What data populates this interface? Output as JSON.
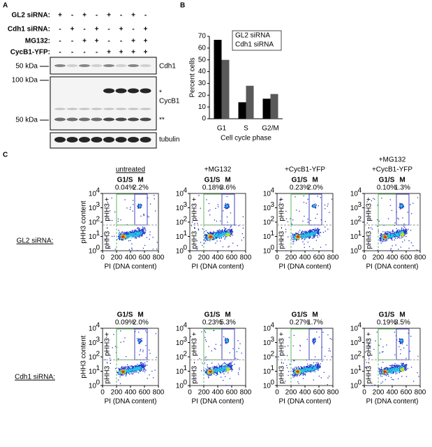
{
  "panel_a": {
    "label": "A",
    "treatments": [
      {
        "name": "GL2 siRNA:",
        "lanes": [
          "+",
          "-",
          "+",
          "-",
          "+",
          "-",
          "+",
          "-"
        ]
      },
      {
        "name": "Cdh1 siRNA:",
        "lanes": [
          "-",
          "+",
          "-",
          "+",
          "-",
          "+",
          "-",
          "+"
        ]
      },
      {
        "name": "MG132:",
        "lanes": [
          "-",
          "-",
          "+",
          "+",
          "-",
          "-",
          "+",
          "+"
        ]
      },
      {
        "name": "CycB1-YFP:",
        "lanes": [
          "-",
          "-",
          "-",
          "-",
          "+",
          "+",
          "+",
          "+"
        ]
      }
    ],
    "markers": [
      "50 kDa",
      "100 kDa",
      "50 kDa"
    ],
    "bands": [
      "Cdh1",
      "*",
      "CycB1",
      "**",
      "tubulin"
    ]
  },
  "chart_data": {
    "label": "B",
    "type": "bar",
    "categories": [
      "G1",
      "S",
      "G2/M"
    ],
    "series": [
      {
        "name": "GL2 siRNA",
        "color": "#000000",
        "values": [
          67,
          14,
          17
        ]
      },
      {
        "name": "Cdh1 siRNA",
        "color": "#595959",
        "values": [
          50,
          28,
          21
        ]
      }
    ],
    "ylabel": "Percent cells",
    "xlabel": "Cell cycle phase",
    "ylim": [
      0,
      70
    ],
    "yticks": [
      0,
      10,
      20,
      30,
      40,
      50,
      60,
      70
    ],
    "legend": "upper right"
  },
  "panel_c": {
    "label": "C",
    "columns": [
      {
        "lines": [
          "untreated"
        ]
      },
      {
        "lines": [
          "+MG132"
        ]
      },
      {
        "lines": [
          "+CycB1-YFP"
        ]
      },
      {
        "lines": [
          "+MG132",
          "+CycB1-YFP"
        ]
      }
    ],
    "rows": [
      {
        "name": "GL2 siRNA:",
        "plots": [
          {
            "g1s": "0.04%",
            "m": "2.2%"
          },
          {
            "g1s": "0.18%",
            "m": "3.6%"
          },
          {
            "g1s": "0.23%",
            "m": "2.0%"
          },
          {
            "g1s": "0.10%",
            "m": "1.3%"
          }
        ]
      },
      {
        "name": "Cdh1 siRNA:",
        "plots": [
          {
            "g1s": "0.09%",
            "m": "2.0%"
          },
          {
            "g1s": "0.23%",
            "m": "5.3%"
          },
          {
            "g1s": "0.27%",
            "m": "1.7%"
          },
          {
            "g1s": "0.19%",
            "m": "3.5%"
          }
        ]
      }
    ],
    "gate_labels": {
      "g1s": "G1/S",
      "m": "M",
      "pos": "pHH3 +",
      "neg": "pHH3 -"
    },
    "xlabel": "PI (DNA content)",
    "ylabel": "pHH3 content",
    "xticks": [
      0,
      200,
      400,
      600,
      800
    ],
    "yticks": [
      {
        "base": "10",
        "exp": "0"
      },
      {
        "base": "10",
        "exp": "1"
      },
      {
        "base": "10",
        "exp": "2"
      },
      {
        "base": "10",
        "exp": "3"
      },
      {
        "base": "10",
        "exp": "4"
      }
    ]
  }
}
